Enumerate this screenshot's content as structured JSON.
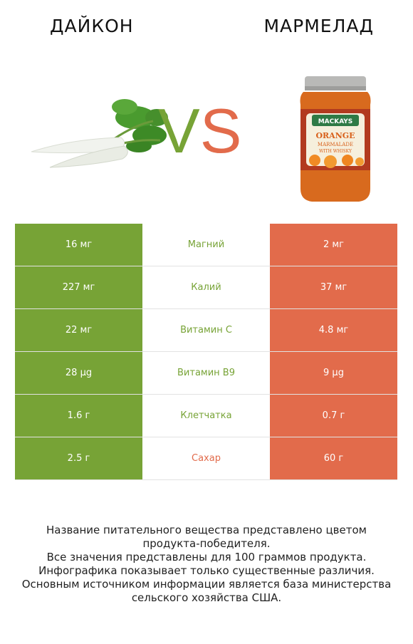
{
  "header": {
    "left_title": "ДАЙКОН",
    "right_title": "МАРМЕЛАД"
  },
  "vs": {
    "v": "V",
    "s": "S"
  },
  "jar_label": {
    "brand": "MACKAYS",
    "line1": "ORANGE",
    "line2": "MARMALADE",
    "line3": "WITH WHISKY"
  },
  "colors": {
    "left": "#77a336",
    "right": "#e26b4b"
  },
  "rows": [
    {
      "left": "16 мг",
      "name": "Магний",
      "right": "2 мг",
      "winner": "left"
    },
    {
      "left": "227 мг",
      "name": "Калий",
      "right": "37 мг",
      "winner": "left"
    },
    {
      "left": "22 мг",
      "name": "Витамин C",
      "right": "4.8 мг",
      "winner": "left"
    },
    {
      "left": "28 µg",
      "name": "Витамин B9",
      "right": "9 µg",
      "winner": "left"
    },
    {
      "left": "1.6 г",
      "name": "Клетчатка",
      "right": "0.7 г",
      "winner": "left"
    },
    {
      "left": "2.5 г",
      "name": "Сахар",
      "right": "60 г",
      "winner": "right"
    }
  ],
  "footer": [
    "Название питательного вещества представлено цветом",
    "продукта-победителя.",
    "Все значения представлены для 100 граммов продукта.",
    "Инфографика показывает только существенные различия.",
    "Основным источником информации является база министерства",
    "сельского хозяйства США."
  ]
}
